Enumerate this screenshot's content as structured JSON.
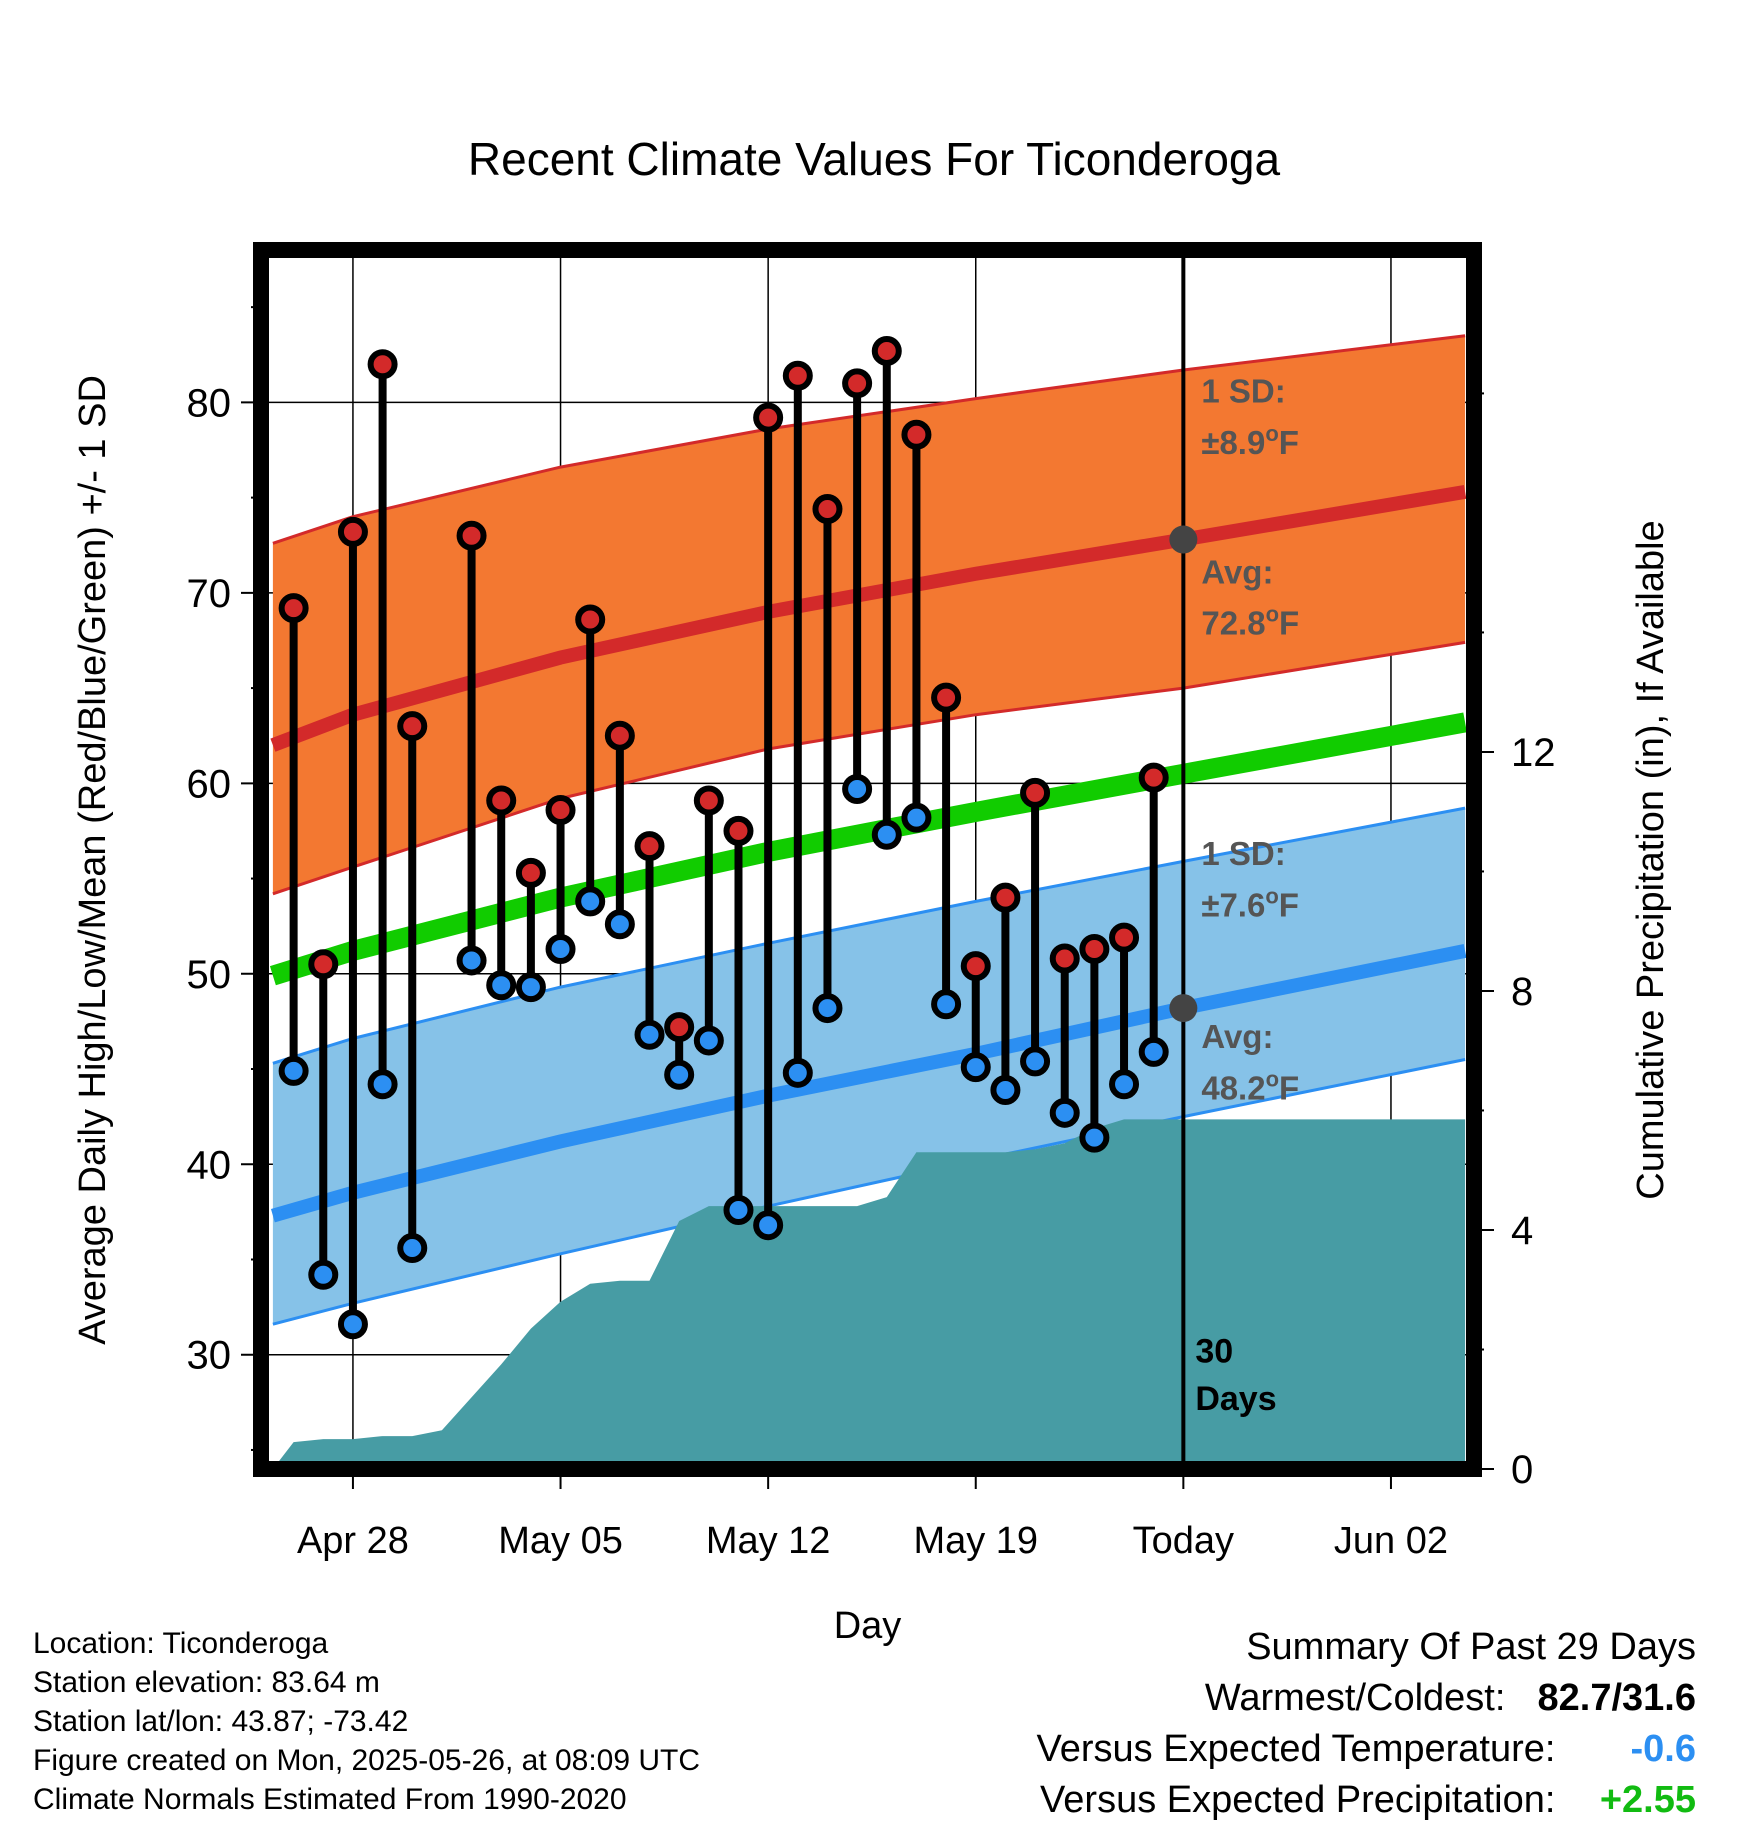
{
  "colors": {
    "high_band": "#f37831",
    "high_line": "#d32a2a",
    "low_band": "#86c2e8",
    "low_line": "#2c8ff2",
    "mean_line": "#11cc00",
    "precip_fill": "#479ca4",
    "high_marker": "#d32a2a",
    "low_marker": "#2c8ff2",
    "annot_gray": "#555555",
    "temp_anomaly": "#2c8ff2",
    "precip_anomaly": "#11bb11"
  },
  "chart_data": {
    "type": "line",
    "title": "Recent Climate Values For Ticonderoga",
    "xlabel": "Day",
    "ylabel": "Average Daily High/Low/Mean (Red/Blue/Green) +/- 1 SD",
    "y2label": "Cumulative Precipitation (in), If Available",
    "ylim": [
      24,
      88
    ],
    "y2lim": [
      0,
      20.4
    ],
    "xlim": [
      -3.1,
      37.8
    ],
    "yticks": [
      30,
      40,
      50,
      60,
      70,
      80
    ],
    "y2ticks": [
      0,
      4,
      8,
      12
    ],
    "xticks": [
      {
        "day": 0,
        "label": "Apr 28"
      },
      {
        "day": 7,
        "label": "May 05"
      },
      {
        "day": 14,
        "label": "May 12"
      },
      {
        "day": 21,
        "label": "May 19"
      },
      {
        "day": 28,
        "label": "Today"
      },
      {
        "day": 35,
        "label": "Jun 02"
      }
    ],
    "grid": true,
    "today_day": 28,
    "today_label_line1": "30",
    "today_label_line2": "Days",
    "normals": {
      "day": [
        -2.7,
        0,
        7,
        14,
        21,
        28,
        37.5
      ],
      "high_avg": [
        62.0,
        63.6,
        66.6,
        69.0,
        71.0,
        72.8,
        75.3
      ],
      "high_upper": [
        72.6,
        74.0,
        76.6,
        78.6,
        80.2,
        81.7,
        83.5
      ],
      "high_lower": [
        54.2,
        55.6,
        59.2,
        61.8,
        63.6,
        65.0,
        67.4
      ],
      "low_avg": [
        37.3,
        38.5,
        41.2,
        43.6,
        45.8,
        48.2,
        51.2
      ],
      "low_upper": [
        45.3,
        46.6,
        49.3,
        51.6,
        53.8,
        55.9,
        58.7
      ],
      "low_lower": [
        31.6,
        32.7,
        35.3,
        37.8,
        40.2,
        42.5,
        45.5
      ],
      "mean_avg": [
        49.9,
        51.2,
        54.0,
        56.4,
        58.5,
        60.5,
        63.2
      ]
    },
    "daily": {
      "day": [
        -2,
        -1,
        0,
        1,
        2,
        4,
        5,
        6,
        7,
        8,
        9,
        10,
        11,
        12,
        13,
        14,
        15,
        16,
        17,
        18,
        19,
        20,
        21,
        22,
        23,
        24,
        25,
        26,
        27
      ],
      "high": [
        69.2,
        50.5,
        73.2,
        82.0,
        63.0,
        73.0,
        59.1,
        55.3,
        58.6,
        68.6,
        62.5,
        56.7,
        47.2,
        59.1,
        57.5,
        79.2,
        81.4,
        74.4,
        81.0,
        82.7,
        78.3,
        64.5,
        50.4,
        54.0,
        59.5,
        50.8,
        51.3,
        51.9,
        60.3
      ],
      "low": [
        44.9,
        34.2,
        31.6,
        44.2,
        35.6,
        50.7,
        49.4,
        49.3,
        51.3,
        53.8,
        52.6,
        46.8,
        44.7,
        46.5,
        37.6,
        36.8,
        44.8,
        48.2,
        59.7,
        57.3,
        58.2,
        48.4,
        45.1,
        43.9,
        45.4,
        42.7,
        41.4,
        44.2,
        45.9
      ]
    },
    "precip": {
      "day": [
        -2.7,
        -2.0,
        -1.0,
        0,
        1,
        2,
        3,
        4,
        5,
        6,
        7,
        8,
        9,
        10,
        11,
        12,
        13,
        14,
        15,
        16,
        17,
        18,
        19,
        20,
        21,
        22,
        23,
        24,
        25,
        26,
        27,
        28,
        37.5
      ],
      "cum": [
        0,
        0.45,
        0.5,
        0.5,
        0.55,
        0.55,
        0.65,
        1.2,
        1.75,
        2.35,
        2.8,
        3.1,
        3.15,
        3.15,
        4.15,
        4.4,
        4.4,
        4.4,
        4.4,
        4.4,
        4.4,
        4.55,
        5.3,
        5.3,
        5.3,
        5.3,
        5.35,
        5.45,
        5.7,
        5.85,
        5.85,
        5.85,
        5.85
      ]
    },
    "annotations": {
      "high_sd_label": "1 SD:",
      "high_sd_value": "±8.9",
      "high_avg_label": "Avg:",
      "high_avg_value": "72.8",
      "low_sd_label": "1 SD:",
      "low_sd_value": "±7.6",
      "low_avg_label": "Avg:",
      "low_avg_value": "48.2",
      "unit_sup": "o",
      "unit_letter": "F"
    }
  },
  "info": {
    "location": "Location: Ticonderoga",
    "elevation": "Station elevation: 83.64 m",
    "latlon": "Station lat/lon: 43.87; -73.42",
    "created": "Figure created on Mon, 2025-05-26, at 08:09 UTC",
    "normals": "Climate Normals Estimated From 1990-2020"
  },
  "summary": {
    "title": "Summary Of Past 29 Days",
    "warm_cold_label": "Warmest/Coldest:",
    "warm_cold_value": "82.7/31.6",
    "temp_label": "Versus Expected Temperature:",
    "temp_value": "-0.6",
    "precip_label": "Versus Expected Precipitation:",
    "precip_value": "+2.55"
  }
}
